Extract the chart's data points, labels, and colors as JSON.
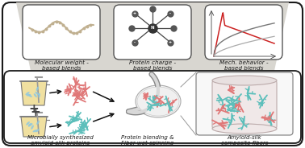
{
  "white": "#ffffff",
  "black": "#1a1a1a",
  "dark_gray": "#444444",
  "gray": "#888888",
  "light_gray": "#c8c5c0",
  "trap_color": "#d8d6d0",
  "salmon": "#e07878",
  "teal": "#5dbfbb",
  "yellow_bg": "#f0e0a0",
  "chain_color": "#c0b090",
  "top_panel_labels": [
    "Molecular weight -\nbased blends",
    "Protein charge -\nbased blends",
    "Mech. behavior -\nbased blends"
  ],
  "bottom_labels": [
    "Microbially synthesized\namyloid-silk proteins",
    "Protein blending &\nFiber wet-spinning",
    "Amyloid-silk\ncomposite fibers"
  ],
  "font_size_label": 5.2,
  "font_size_bottom": 5.0,
  "fig_w": 3.78,
  "fig_h": 1.84,
  "dpi": 100
}
